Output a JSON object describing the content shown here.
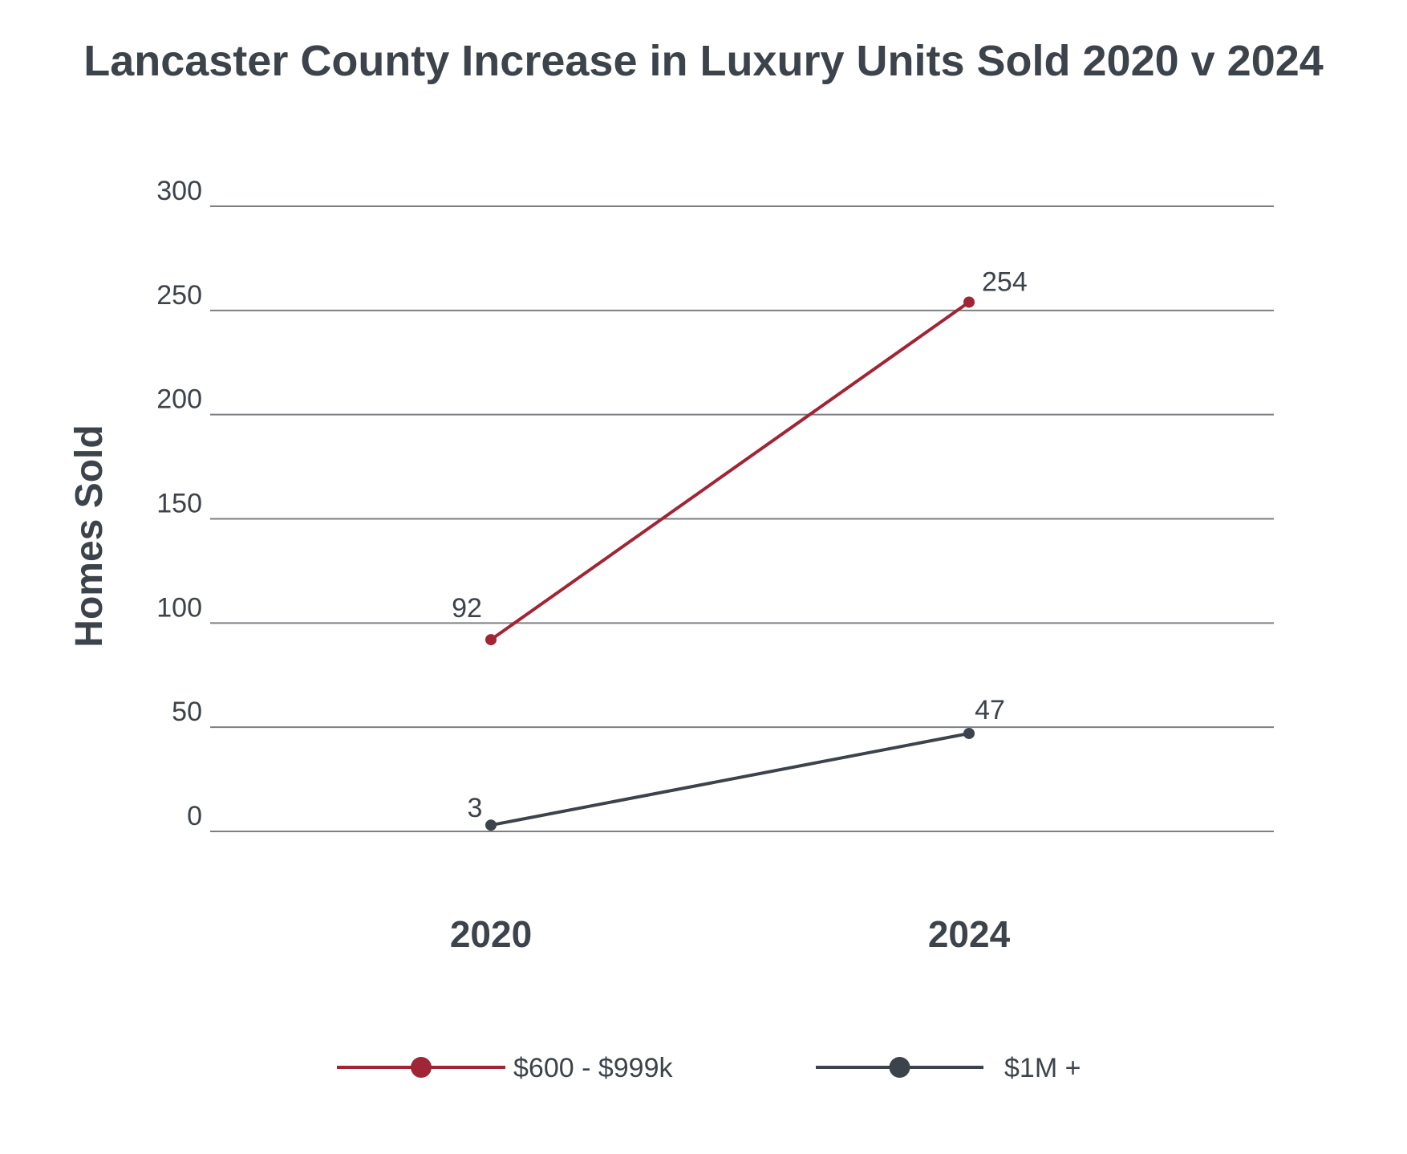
{
  "chart_data": {
    "type": "line",
    "title": "Lancaster County Increase in Luxury Units Sold 2020 v 2024",
    "xlabel": "",
    "ylabel": "Homes Sold",
    "categories": [
      "2020",
      "2024"
    ],
    "ylim": [
      0,
      300
    ],
    "yticks": [
      0,
      50,
      100,
      150,
      200,
      250,
      300
    ],
    "grid": true,
    "legend_position": "bottom",
    "series": [
      {
        "name": "$600 - $999k",
        "values": [
          92,
          254
        ],
        "labels": [
          "92",
          "254"
        ],
        "color": "#a02535"
      },
      {
        "name": "$1M +",
        "values": [
          3,
          47
        ],
        "labels": [
          "3",
          "47"
        ],
        "color": "#3d434a"
      }
    ]
  }
}
